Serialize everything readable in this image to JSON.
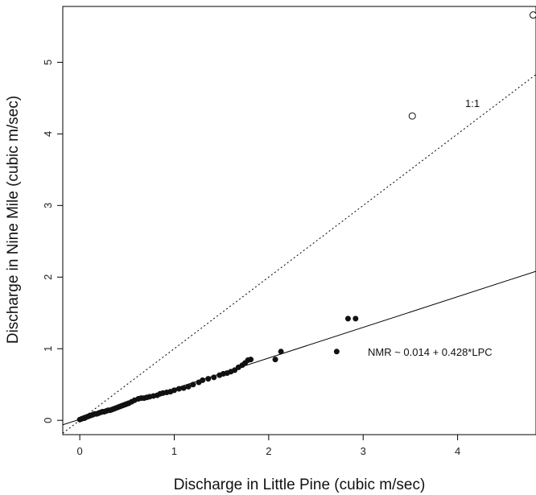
{
  "chart_data": {
    "type": "scatter",
    "title": "",
    "xlabel": "Discharge in Little Pine (cubic m/sec)",
    "ylabel": "Discharge in Nine Mile (cubic m/sec)",
    "xlim": [
      -0.18,
      4.83
    ],
    "ylim": [
      -0.2,
      5.78
    ],
    "x_ticks": [
      0,
      1,
      2,
      3,
      4
    ],
    "y_ticks": [
      0,
      1,
      2,
      3,
      4,
      5
    ],
    "grid": false,
    "legend": "none",
    "series": [
      {
        "marker": "filled",
        "points": [
          [
            0.0,
            0.01
          ],
          [
            0.02,
            0.02
          ],
          [
            0.04,
            0.03
          ],
          [
            0.05,
            0.03
          ],
          [
            0.06,
            0.04
          ],
          [
            0.08,
            0.05
          ],
          [
            0.1,
            0.06
          ],
          [
            0.12,
            0.07
          ],
          [
            0.14,
            0.08
          ],
          [
            0.16,
            0.09
          ],
          [
            0.18,
            0.09
          ],
          [
            0.2,
            0.1
          ],
          [
            0.22,
            0.11
          ],
          [
            0.24,
            0.12
          ],
          [
            0.26,
            0.12
          ],
          [
            0.28,
            0.13
          ],
          [
            0.3,
            0.14
          ],
          [
            0.32,
            0.14
          ],
          [
            0.34,
            0.15
          ],
          [
            0.36,
            0.16
          ],
          [
            0.38,
            0.17
          ],
          [
            0.4,
            0.18
          ],
          [
            0.42,
            0.19
          ],
          [
            0.44,
            0.2
          ],
          [
            0.46,
            0.21
          ],
          [
            0.48,
            0.22
          ],
          [
            0.5,
            0.23
          ],
          [
            0.52,
            0.24
          ],
          [
            0.55,
            0.26
          ],
          [
            0.58,
            0.28
          ],
          [
            0.62,
            0.3
          ],
          [
            0.65,
            0.31
          ],
          [
            0.68,
            0.31
          ],
          [
            0.71,
            0.32
          ],
          [
            0.74,
            0.33
          ],
          [
            0.78,
            0.34
          ],
          [
            0.82,
            0.35
          ],
          [
            0.85,
            0.37
          ],
          [
            0.88,
            0.38
          ],
          [
            0.92,
            0.39
          ],
          [
            0.96,
            0.4
          ],
          [
            1.0,
            0.42
          ],
          [
            1.05,
            0.44
          ],
          [
            1.1,
            0.45
          ],
          [
            1.15,
            0.47
          ],
          [
            1.2,
            0.5
          ],
          [
            1.26,
            0.53
          ],
          [
            1.3,
            0.56
          ],
          [
            1.36,
            0.58
          ],
          [
            1.42,
            0.6
          ],
          [
            1.48,
            0.63
          ],
          [
            1.52,
            0.65
          ],
          [
            1.56,
            0.66
          ],
          [
            1.6,
            0.68
          ],
          [
            1.64,
            0.7
          ],
          [
            1.68,
            0.74
          ],
          [
            1.72,
            0.77
          ],
          [
            1.75,
            0.8
          ],
          [
            1.78,
            0.84
          ],
          [
            1.81,
            0.85
          ],
          [
            2.07,
            0.85
          ],
          [
            2.13,
            0.96
          ],
          [
            2.72,
            0.96
          ],
          [
            2.84,
            1.42
          ],
          [
            2.92,
            1.42
          ]
        ]
      },
      {
        "marker": "open",
        "points": [
          [
            3.52,
            4.25
          ],
          [
            4.8,
            5.66
          ]
        ]
      }
    ],
    "fit_line": {
      "intercept": 0.014,
      "slope": 0.428,
      "label": "NMR ~ 0.014 + 0.428*LPC",
      "style": "solid"
    },
    "identity_line": {
      "label": "1:1",
      "style": "dotted"
    }
  }
}
